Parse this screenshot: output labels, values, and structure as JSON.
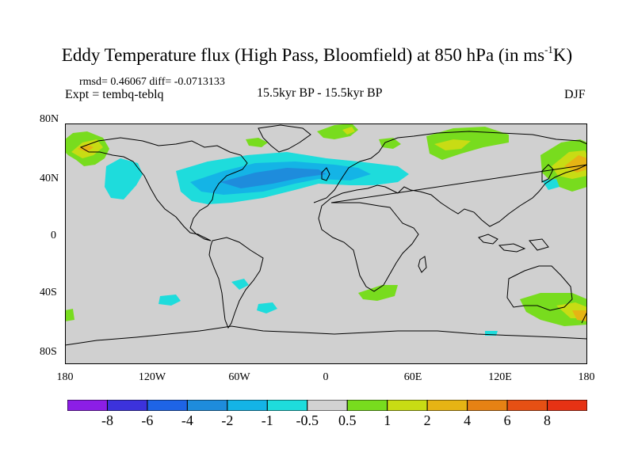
{
  "title": {
    "main": "Eddy Temperature flux (High Pass, Bloomfield) at 850 hPa (in ms",
    "superscript": "-1",
    "end": "K)"
  },
  "stats": "rmsd= 0.46067 diff= -0.0713133",
  "expt": "Expt = tembq-teblq",
  "period": "15.5kyr BP - 15.5kyr BP",
  "season": "DJF",
  "lat_labels": [
    "80N",
    "40N",
    "0",
    "40S",
    "80S"
  ],
  "lon_labels": [
    "180",
    "120W",
    "60W",
    "0",
    "60E",
    "120E",
    "180"
  ],
  "colorbar": {
    "labels": [
      "-8",
      "-6",
      "-4",
      "-2",
      "-1",
      "-0.5",
      "0.5",
      "1",
      "2",
      "4",
      "6",
      "8"
    ],
    "colors": [
      "#8c1ee6",
      "#3c32dc",
      "#1e64e6",
      "#1e8cdc",
      "#14b4e6",
      "#1edcdc",
      "#d2d2d2",
      "#78dc1e",
      "#c8dc14",
      "#e6b414",
      "#e68214",
      "#e65014",
      "#e63214"
    ]
  },
  "map": {
    "background": "#d0d0d0",
    "projection": "cylindrical-equidistant",
    "lon_range": [
      -180,
      180
    ],
    "lat_range": [
      -90,
      90
    ]
  }
}
